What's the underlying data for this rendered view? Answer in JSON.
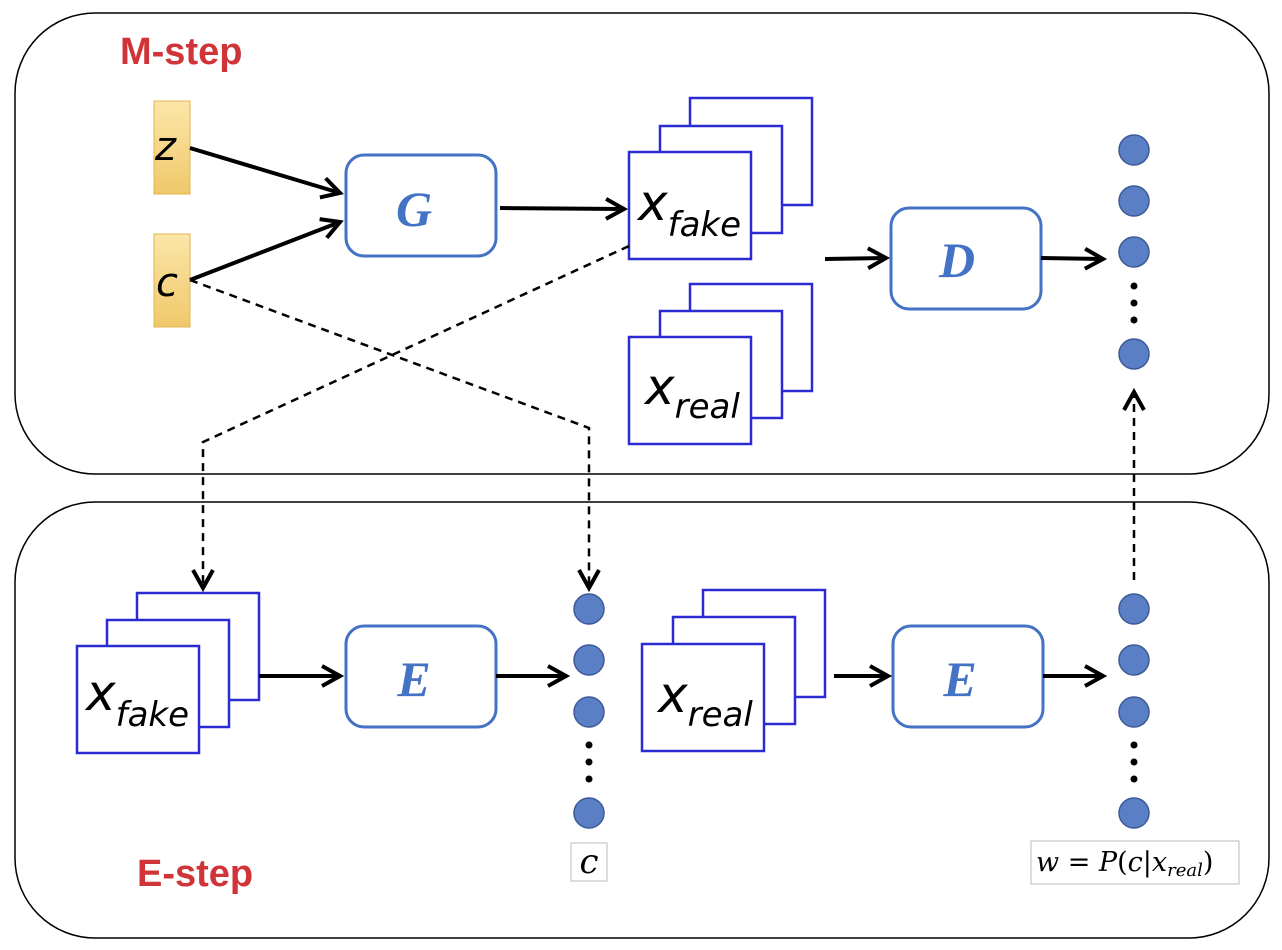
{
  "m_step": {
    "label": "M-step"
  },
  "e_step": {
    "label": "E-step"
  },
  "inputs": {
    "z": "z",
    "c": "c"
  },
  "nodes": {
    "generator": "G",
    "discriminator": "D",
    "encoder_fake": "E",
    "encoder_real": "E"
  },
  "data_stacks": {
    "x_fake": {
      "base": "x",
      "sub": "fake"
    },
    "x_real": {
      "base": "x",
      "sub": "real"
    }
  },
  "outputs": {
    "c_label": "c",
    "w_label": {
      "lhs": "w",
      "eq": " = ",
      "func": "P",
      "open": "(",
      "c": "c",
      "bar": "|",
      "x": "x",
      "sub": "real",
      "close": ")"
    }
  },
  "colors": {
    "step_label": "#d13438",
    "node_border": "#4472c4",
    "node_text": "#4472c4",
    "stack_border": "#2b2bd4",
    "input_fill": "#f6d88a",
    "dot_fill": "#5b7fc4"
  }
}
